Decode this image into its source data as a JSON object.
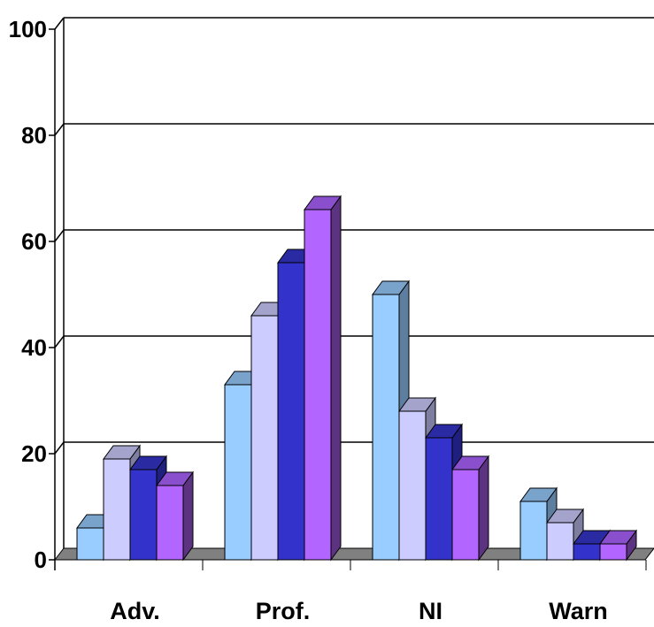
{
  "chart_data": {
    "type": "bar",
    "title": "",
    "xlabel": "",
    "ylabel": "",
    "categories": [
      "Adv.",
      "Prof.",
      "NI",
      "Warn"
    ],
    "ylim": [
      0,
      100
    ],
    "yticks": [
      0,
      20,
      40,
      60,
      80,
      100
    ],
    "grid": true,
    "legend": "none",
    "style": "3d-clustered-column",
    "series": [
      {
        "values": [
          6,
          33,
          50,
          11
        ],
        "color": "#99ccff",
        "side_color": "#5e7ea0",
        "top_color": "#7aa3cc"
      },
      {
        "values": [
          19,
          46,
          28,
          7
        ],
        "color": "#ccccff",
        "side_color": "#7e7ea0",
        "top_color": "#a3a3cc"
      },
      {
        "values": [
          17,
          56,
          23,
          3
        ],
        "color": "#3333cc",
        "side_color": "#1f1f80",
        "top_color": "#2a2aa3"
      },
      {
        "values": [
          14,
          66,
          17,
          3
        ],
        "color": "#b366ff",
        "side_color": "#5c3380",
        "top_color": "#8a4fcc"
      }
    ],
    "floor_color": "#808080",
    "floor_side_color": "#555555"
  }
}
